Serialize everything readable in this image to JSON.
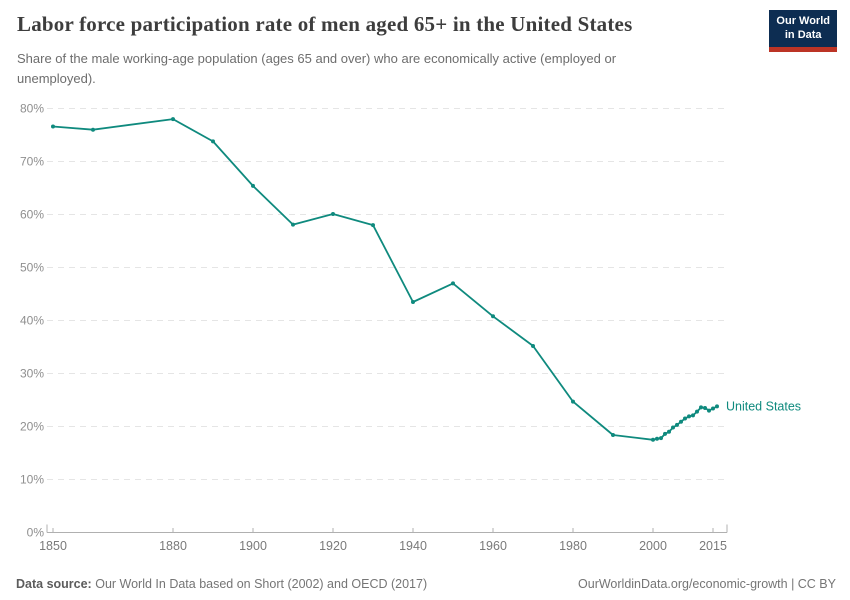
{
  "header": {
    "title": "Labor force participation rate of men aged 65+ in the United States",
    "subtitle": "Share of the male working-age population (ages 65 and over) who are economically active (employed or unemployed).",
    "logo": {
      "line1": "Our World",
      "line2": "in Data"
    }
  },
  "footer": {
    "source_label": "Data source:",
    "source_text": "Our World In Data based on Short (2002) and OECD (2017)",
    "link_text": "OurWorldinData.org/economic-growth | CC BY"
  },
  "colors": {
    "line": "#0f8a7e",
    "logo_bg": "#0d2d52",
    "logo_accent": "#bc3425",
    "grid": "#e5e5e5",
    "axis": "#b0b0b0",
    "y_tick_label": "#8f8f8f",
    "x_tick_label": "#7a7a7a",
    "title_text": "#3d3d3d",
    "subtitle_text": "#6d6d6d"
  },
  "chart_data": {
    "type": "line",
    "title": "Labor force participation rate of men aged 65+ in the United States",
    "xlabel": "",
    "ylabel": "",
    "y_unit": "%",
    "xlim": [
      1848,
      2019
    ],
    "ylim": [
      0,
      80
    ],
    "grid": true,
    "legend": "end-of-line-label",
    "x_ticks": [
      1850,
      1880,
      1900,
      1920,
      1940,
      1960,
      1980,
      2000,
      2015
    ],
    "y_ticks": [
      0,
      10,
      20,
      30,
      40,
      50,
      60,
      70,
      80
    ],
    "series": [
      {
        "name": "United States",
        "x": [
          1850,
          1860,
          1880,
          1890,
          1900,
          1910,
          1920,
          1930,
          1940,
          1950,
          1960,
          1970,
          1980,
          1990,
          2000,
          2001,
          2002,
          2003,
          2004,
          2005,
          2006,
          2007,
          2008,
          2009,
          2010,
          2011,
          2012,
          2013,
          2014,
          2015,
          2016
        ],
        "values": [
          76.6,
          76.0,
          78.0,
          73.8,
          65.4,
          58.1,
          60.1,
          58.0,
          43.5,
          47.0,
          40.8,
          35.2,
          24.7,
          18.4,
          17.5,
          17.7,
          17.8,
          18.6,
          19.0,
          19.8,
          20.3,
          20.9,
          21.5,
          21.9,
          22.1,
          22.8,
          23.6,
          23.5,
          23.0,
          23.4,
          23.8
        ]
      }
    ]
  }
}
